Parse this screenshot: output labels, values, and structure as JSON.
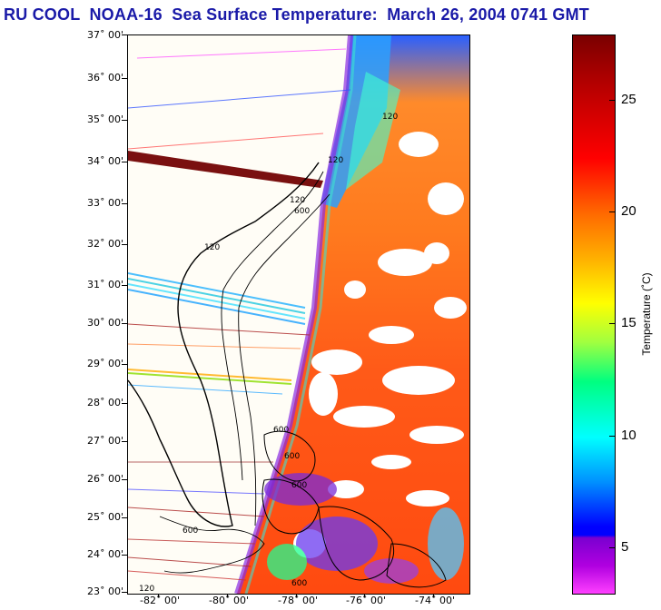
{
  "title": "RU COOL  NOAA-16  Sea Surface Temperature:  March 26, 2004 0741 GMT",
  "map": {
    "lat_labels": [
      "37˚ 00'",
      "36˚ 00'",
      "35˚ 00'",
      "34˚ 00'",
      "33˚ 00'",
      "32˚ 00'",
      "31˚ 00'",
      "30˚ 00'",
      "29˚ 00'",
      "28˚ 00'",
      "27˚ 00'",
      "26˚ 00'",
      "25˚ 00'",
      "24˚ 00'",
      "23˚ 00'"
    ],
    "lon_labels": [
      "-82˚ 00'",
      "-80˚ 00'",
      "-78˚ 00'",
      "-76˚ 00'",
      "-74˚ 00'"
    ],
    "contour_labels": [
      "120",
      "120",
      "600",
      "120",
      "120",
      "600",
      "600",
      "600",
      "600",
      "600",
      "120"
    ]
  },
  "colorbar": {
    "title": "Temperature (˚C)",
    "tick_labels": [
      "25",
      "20",
      "15",
      "10",
      "5"
    ]
  }
}
